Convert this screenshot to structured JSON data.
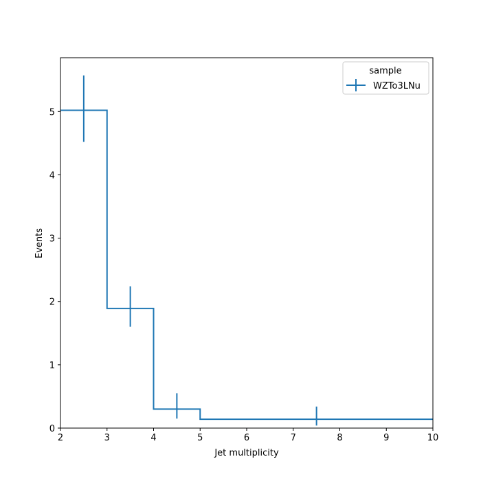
{
  "chart_data": {
    "type": "histogram-step",
    "title": "",
    "xlabel": "Jet multiplicity",
    "ylabel": "Events",
    "xlim": [
      2,
      10
    ],
    "ylim": [
      0,
      5.85
    ],
    "xticks": [
      2,
      3,
      4,
      5,
      6,
      7,
      8,
      9,
      10
    ],
    "yticks": [
      0,
      1,
      2,
      3,
      4,
      5
    ],
    "grid": false,
    "legend": {
      "title": "sample",
      "placement": "top-right"
    },
    "series": [
      {
        "name": "WZTo3LNu",
        "color": "#1f77b4",
        "bin_edges": [
          2,
          3,
          4,
          5,
          10
        ],
        "bin_centers": [
          2.5,
          3.5,
          4.5,
          7.5
        ],
        "values": [
          5.02,
          1.89,
          0.3,
          0.14
        ],
        "err_low": [
          4.52,
          1.6,
          0.15,
          0.04
        ],
        "err_high": [
          5.57,
          2.24,
          0.55,
          0.34
        ]
      }
    ]
  }
}
